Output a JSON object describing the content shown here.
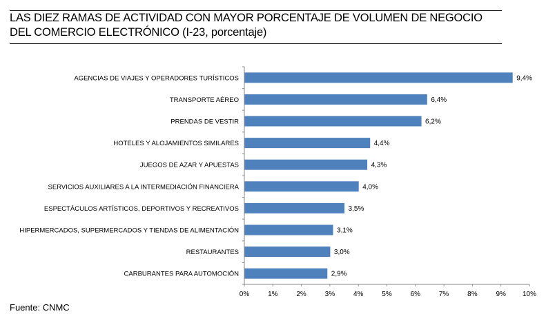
{
  "title_lines": [
    "LAS DIEZ RAMAS DE ACTIVIDAD CON MAYOR PORCENTAJE DE VOLUMEN DE NEGOCIO",
    "DEL COMERCIO ELECTRÓNICO (I-23, porcentaje)"
  ],
  "source": "Fuente: CNMC",
  "chart_data": {
    "type": "bar",
    "orientation": "horizontal",
    "title": "LAS DIEZ RAMAS DE ACTIVIDAD CON MAYOR PORCENTAJE DE VOLUMEN DE NEGOCIO DEL COMERCIO ELECTRÓNICO (I-23, porcentaje)",
    "categories": [
      "AGENCIAS DE VIAJES Y OPERADORES TURÍSTICOS",
      "TRANSPORTE AÉREO",
      "PRENDAS DE VESTIR",
      "HOTELES  Y ALOJAMIENTOS SIMILARES",
      "JUEGOS DE AZAR Y APUESTAS",
      "SERVICIOS AUXILIARES A LA INTERMEDIACIÓN FINANCIERA",
      "ESPECTÁCULOS ARTÍSTICOS, DEPORTIVOS Y RECREATIVOS",
      "HIPERMERCADOS, SUPERMERCADOS Y TIENDAS DE ALIMENTACIÓN",
      "RESTAURANTES",
      "CARBURANTES PARA AUTOMOCIÓN"
    ],
    "values": [
      9.4,
      6.4,
      6.2,
      4.4,
      4.3,
      4.0,
      3.5,
      3.1,
      3.0,
      2.9
    ],
    "data_labels": [
      "9,4%",
      "6,4%",
      "6,2%",
      "4,4%",
      "4,3%",
      "4,0%",
      "3,5%",
      "3,1%",
      "3,0%",
      "2,9%"
    ],
    "xlim": [
      0,
      10
    ],
    "x_ticks": [
      "0%",
      "1%",
      "2%",
      "3%",
      "4%",
      "5%",
      "6%",
      "7%",
      "8%",
      "9%",
      "10%"
    ],
    "xlabel": "",
    "ylabel": "",
    "grid": false,
    "legend": "none",
    "bar_color": "#4F81BD"
  }
}
